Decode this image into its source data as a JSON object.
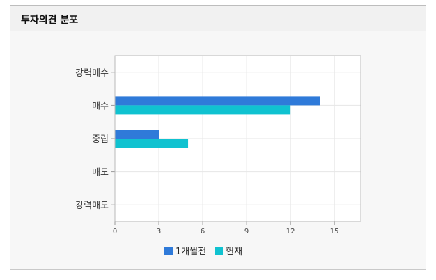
{
  "panel": {
    "title": "투자의견 분포"
  },
  "colors": {
    "prev": "#2f7ad9",
    "curr": "#10c2d0",
    "grid": "#e6e6e6",
    "border": "#b9b9b9"
  },
  "chart_data": {
    "type": "bar",
    "orientation": "horizontal",
    "categories": [
      "강력매수",
      "매수",
      "중립",
      "매도",
      "강력매도"
    ],
    "series": [
      {
        "name": "1개월전",
        "values": [
          0,
          14,
          3,
          0,
          0
        ]
      },
      {
        "name": "현재",
        "values": [
          0,
          12,
          5,
          0,
          0
        ]
      }
    ],
    "xlim": [
      0,
      16.8
    ],
    "xticks": [
      0,
      3,
      6,
      9,
      12,
      15
    ],
    "grid": true,
    "legend": "bottom"
  }
}
